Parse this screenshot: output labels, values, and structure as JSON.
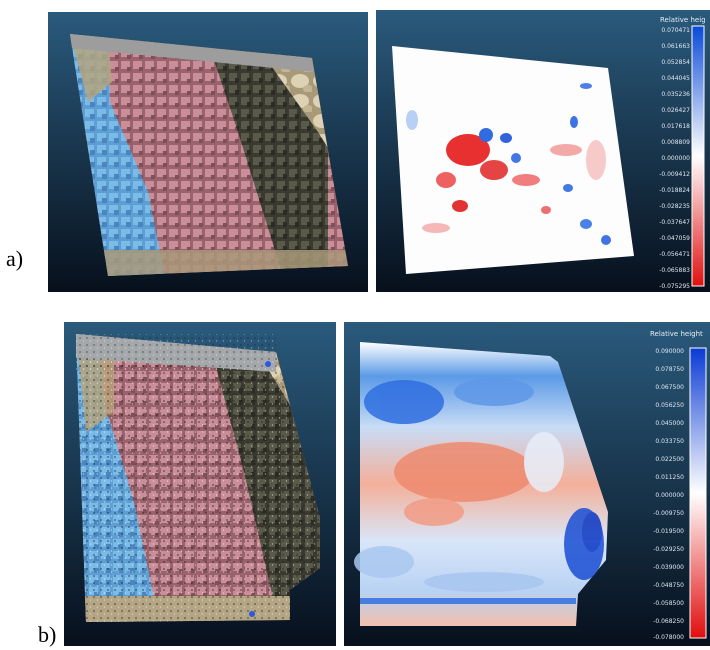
{
  "labels": {
    "a": "a)",
    "b": "b)"
  },
  "legend_a": {
    "title": "Relative heig",
    "ticks": [
      "0.070471",
      "0.061663",
      "0.052854",
      "0.044045",
      "0.035236",
      "0.026427",
      "0.017618",
      "0.008809",
      "0.000000",
      "-0.009412",
      "-0.018824",
      "-0.028235",
      "-0.037647",
      "-0.047059",
      "-0.056471",
      "-0.065883",
      "-0.075295"
    ]
  },
  "legend_b": {
    "title": "Relative height",
    "ticks": [
      "0.090000",
      "0.078750",
      "0.067500",
      "0.056250",
      "0.045000",
      "0.033750",
      "0.022500",
      "0.011250",
      "0.000000",
      "-0.009750",
      "-0.019500",
      "-0.029250",
      "-0.039000",
      "-0.048750",
      "-0.058500",
      "-0.068250",
      "-0.078000"
    ]
  },
  "colors": {
    "background_top": "#2a5a7c",
    "background_bottom": "#07101c",
    "blue_zone": "#6aaee0",
    "pink_zone": "#b87a84",
    "dark_zone": "#4a4a3e",
    "beige_zone": "#c8b894",
    "scale_high": "#0a4ad8",
    "scale_zero": "#ffffff",
    "scale_low": "#e01010"
  }
}
